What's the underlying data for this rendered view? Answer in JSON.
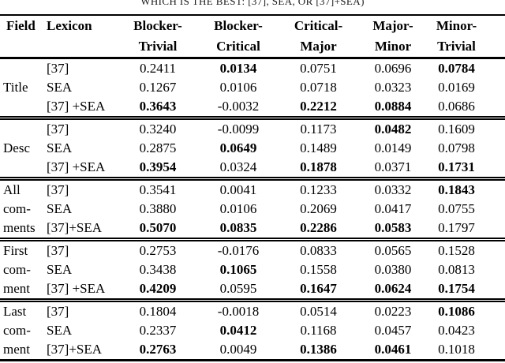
{
  "caption": "WHICH IS THE BEST: [37], SEA, OR [37]+SEA)",
  "table": {
    "header": {
      "columns": [
        {
          "line1": "Field",
          "line2": ""
        },
        {
          "line1": "Lexicon",
          "line2": ""
        },
        {
          "line1": "Blocker-",
          "line2": "Trivial"
        },
        {
          "line1": "Blocker-",
          "line2": "Critical"
        },
        {
          "line1": "Critical-",
          "line2": "Major"
        },
        {
          "line1": "Major-",
          "line2": "Minor"
        },
        {
          "line1": "Minor-",
          "line2": "Trivial"
        }
      ]
    },
    "groups": [
      {
        "field_lines": [
          "",
          "Title",
          ""
        ],
        "rows": [
          {
            "lexicon": "[37]",
            "values": [
              "0.2411",
              "0.0134",
              "0.0751",
              "0.0696",
              "0.0784"
            ],
            "bold": [
              false,
              true,
              false,
              false,
              true
            ]
          },
          {
            "lexicon": "SEA",
            "values": [
              "0.1267",
              "0.0106",
              "0.0718",
              "0.0323",
              "0.0169"
            ],
            "bold": [
              false,
              false,
              false,
              false,
              false
            ]
          },
          {
            "lexicon": "[37] +SEA",
            "values": [
              "0.3643",
              "-0.0032",
              "0.2212",
              "0.0884",
              "0.0686"
            ],
            "bold": [
              true,
              false,
              true,
              true,
              false
            ]
          }
        ]
      },
      {
        "field_lines": [
          "",
          "Desc",
          ""
        ],
        "rows": [
          {
            "lexicon": "[37]",
            "values": [
              "0.3240",
              "-0.0099",
              "0.1173",
              "0.0482",
              "0.1609"
            ],
            "bold": [
              false,
              false,
              false,
              true,
              false
            ]
          },
          {
            "lexicon": "SEA",
            "values": [
              "0.2875",
              "0.0649",
              "0.1489",
              "0.0149",
              "0.0798"
            ],
            "bold": [
              false,
              true,
              false,
              false,
              false
            ]
          },
          {
            "lexicon": "[37] +SEA",
            "values": [
              "0.3954",
              "0.0324",
              "0.1878",
              "0.0371",
              "0.1731"
            ],
            "bold": [
              true,
              false,
              true,
              false,
              true
            ]
          }
        ]
      },
      {
        "field_lines": [
          "All",
          "com-",
          "ments"
        ],
        "rows": [
          {
            "lexicon": "[37]",
            "values": [
              "0.3541",
              "0.0041",
              "0.1233",
              "0.0332",
              "0.1843"
            ],
            "bold": [
              false,
              false,
              false,
              false,
              true
            ]
          },
          {
            "lexicon": "SEA",
            "values": [
              "0.3880",
              "0.0106",
              "0.2069",
              "0.0417",
              "0.0755"
            ],
            "bold": [
              false,
              false,
              false,
              false,
              false
            ]
          },
          {
            "lexicon": "[37]+SEA",
            "values": [
              "0.5070",
              "0.0835",
              "0.2286",
              "0.0583",
              "0.1797"
            ],
            "bold": [
              true,
              true,
              true,
              true,
              false
            ]
          }
        ]
      },
      {
        "field_lines": [
          "First",
          "com-",
          "ment"
        ],
        "rows": [
          {
            "lexicon": "[37]",
            "values": [
              "0.2753",
              "-0.0176",
              "0.0833",
              "0.0565",
              "0.1528"
            ],
            "bold": [
              false,
              false,
              false,
              false,
              false
            ]
          },
          {
            "lexicon": "SEA",
            "values": [
              "0.3438",
              "0.1065",
              "0.1558",
              "0.0380",
              "0.0813"
            ],
            "bold": [
              false,
              true,
              false,
              false,
              false
            ]
          },
          {
            "lexicon": "[37] +SEA",
            "values": [
              "0.4209",
              "0.0595",
              "0.1647",
              "0.0624",
              "0.1754"
            ],
            "bold": [
              true,
              false,
              true,
              true,
              true
            ]
          }
        ]
      },
      {
        "field_lines": [
          "Last",
          "com-",
          "ment"
        ],
        "rows": [
          {
            "lexicon": "[37]",
            "values": [
              "0.1804",
              "-0.0018",
              "0.0514",
              "0.0223",
              "0.1086"
            ],
            "bold": [
              false,
              false,
              false,
              false,
              true
            ]
          },
          {
            "lexicon": "SEA",
            "values": [
              "0.2337",
              "0.0412",
              "0.1168",
              "0.0457",
              "0.0423"
            ],
            "bold": [
              false,
              true,
              false,
              false,
              false
            ]
          },
          {
            "lexicon": "[37]+SEA",
            "values": [
              "0.2763",
              "0.0049",
              "0.1386",
              "0.0461",
              "0.1018"
            ],
            "bold": [
              true,
              false,
              true,
              true,
              false
            ]
          }
        ]
      }
    ]
  }
}
